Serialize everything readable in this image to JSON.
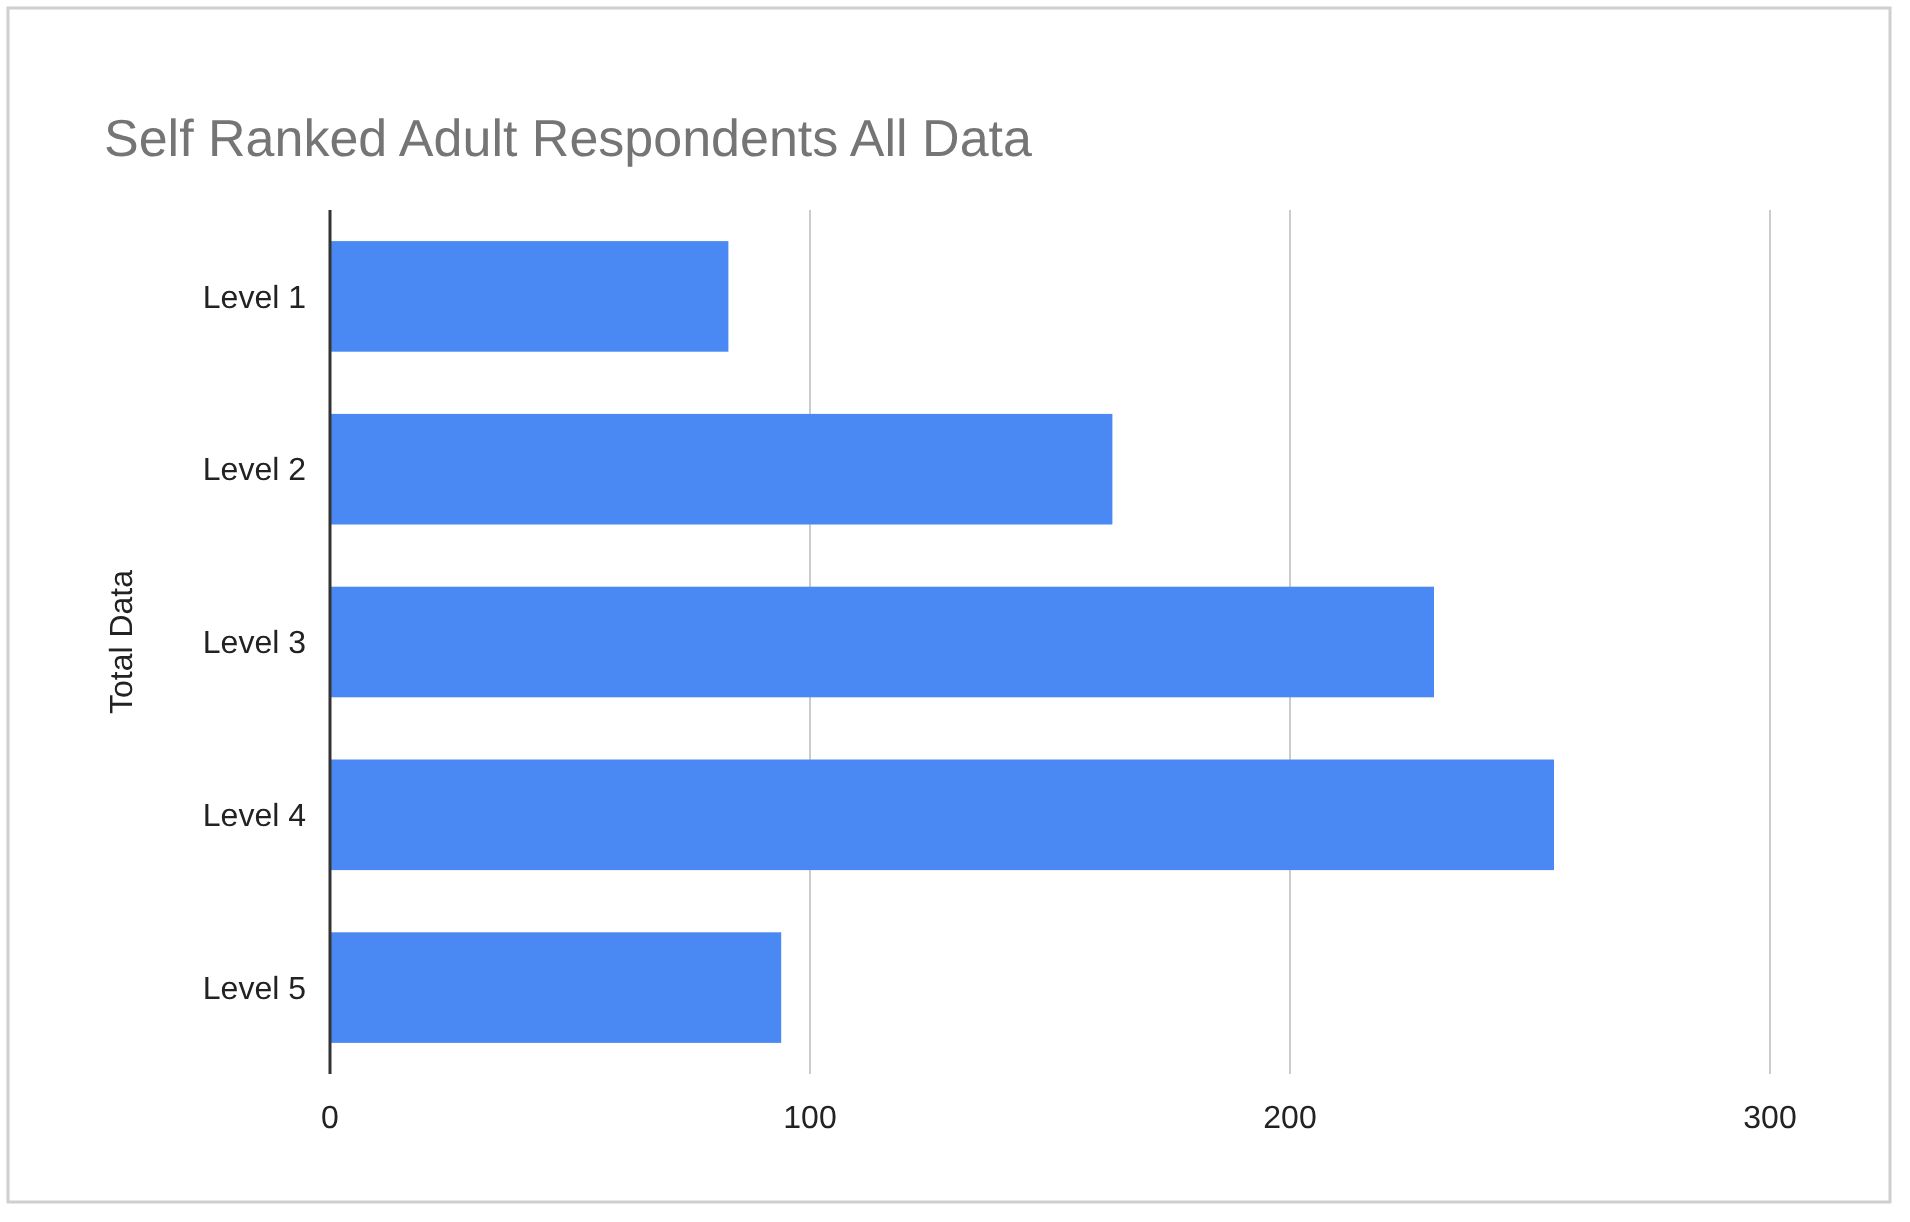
{
  "chart_data": {
    "type": "bar",
    "orientation": "horizontal",
    "title": "Self Ranked Adult Respondents All Data",
    "ylabel": "Total Data",
    "categories": [
      "Level 1",
      "Level 2",
      "Level 3",
      "Level 4",
      "Level 5"
    ],
    "values": [
      83,
      163,
      230,
      255,
      94
    ],
    "color": "#4a89f3",
    "xlim": [
      0,
      300
    ],
    "xticks": [
      0,
      100,
      200,
      300
    ],
    "grid": "x"
  }
}
